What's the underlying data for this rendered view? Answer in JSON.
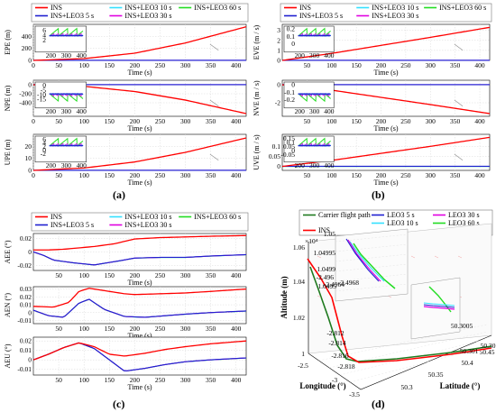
{
  "panel_labels": [
    "(a)",
    "(b)",
    "(c)",
    "(d)"
  ],
  "colors": {
    "INS": "#ff0000",
    "INS+LEO3 5 s": "#1f1fd0",
    "INS+LEO3 10 s": "#33e0ff",
    "INS+LEO3 30 s": "#e000e0",
    "INS+LEO3 60 s": "#22dd22",
    "Carrier flight path": "#1f7a1f",
    "LEO3 5 s": "#1f1fd0",
    "LEO3 10 s": "#33e0ff",
    "LEO3 30 s": "#e000e0",
    "LEO3 60 s": "#22dd22"
  },
  "legend_series": [
    "INS",
    "INS+LEO3 5 s",
    "INS+LEO3 10 s",
    "INS+LEO3 30 s",
    "INS+LEO3 60 s"
  ],
  "chart_data": [
    {
      "id": "a",
      "type": "line",
      "xlabel": "Time (s)",
      "subplots": [
        {
          "ylabel": "EPE (m)",
          "xlim": [
            0,
            420
          ],
          "ylim": [
            0,
            600
          ],
          "yticks": [
            0,
            200,
            400
          ],
          "xticks": [
            0,
            50,
            100,
            150,
            200,
            250,
            300,
            350,
            400
          ],
          "ins": {
            "x": [
              0,
              100,
              200,
              300,
              420
            ],
            "y": [
              0,
              30,
              120,
              290,
              560
            ]
          },
          "others": {
            "y": [
              0,
              0,
              0,
              0,
              0
            ]
          },
          "inset": {
            "xticks": [
              200,
              300,
              400
            ],
            "yticks": [
              2,
              4,
              6
            ],
            "ylim": [
              0,
              7
            ],
            "xlim": [
              180,
              420
            ]
          }
        },
        {
          "ylabel": "NPE (m)",
          "xlim": [
            0,
            420
          ],
          "ylim": [
            -700,
            100
          ],
          "yticks": [
            -400,
            -200,
            0
          ],
          "xticks": [
            0,
            50,
            100,
            150,
            200,
            250,
            300,
            350,
            400
          ],
          "ins": {
            "x": [
              0,
              100,
              200,
              300,
              420
            ],
            "y": [
              0,
              -35,
              -150,
              -340,
              -640
            ]
          },
          "others": {
            "y": [
              0,
              0,
              0,
              0,
              0
            ]
          },
          "inset": {
            "xticks": [
              200,
              300,
              400
            ],
            "yticks": [
              0,
              -5,
              -10,
              -15
            ],
            "ylim": [
              -17,
              2
            ],
            "xlim": [
              180,
              420
            ]
          }
        },
        {
          "ylabel": "UPE (m)",
          "xlim": [
            0,
            420
          ],
          "ylim": [
            0,
            30
          ],
          "yticks": [
            0,
            10,
            20
          ],
          "xticks": [
            0,
            50,
            100,
            150,
            200,
            250,
            300,
            350,
            400
          ],
          "ins": {
            "x": [
              0,
              100,
              200,
              300,
              420
            ],
            "y": [
              0,
              2,
              7,
              15,
              27
            ]
          },
          "others": {
            "y": [
              0,
              0,
              0,
              0,
              0
            ]
          },
          "inset": {
            "xticks": [
              200,
              300,
              400
            ],
            "yticks": [
              -2,
              0,
              2,
              4,
              6
            ],
            "ylim": [
              -3,
              7
            ],
            "xlim": [
              180,
              420
            ]
          }
        }
      ]
    },
    {
      "id": "b",
      "type": "line",
      "xlabel": "Time (s)",
      "subplots": [
        {
          "ylabel": "EVE (m / s)",
          "xlim": [
            0,
            420
          ],
          "ylim": [
            0,
            3.6
          ],
          "yticks": [
            0,
            1,
            2,
            3
          ],
          "xticks": [
            50,
            100,
            150,
            200,
            250,
            300,
            350,
            400
          ],
          "ins": {
            "x": [
              0,
              100,
              200,
              300,
              420
            ],
            "y": [
              0,
              0.7,
              1.5,
              2.3,
              3.3
            ]
          },
          "others": {
            "y": [
              0,
              0,
              0,
              0,
              0
            ]
          },
          "inset": {
            "xticks": [
              200,
              300,
              400
            ],
            "yticks": [
              0,
              0.1,
              0.2
            ],
            "ylim": [
              -0.02,
              0.22
            ],
            "xlim": [
              180,
              420
            ]
          }
        },
        {
          "ylabel": "NVE (m / s)",
          "xlim": [
            0,
            420
          ],
          "ylim": [
            -3.5,
            0.5
          ],
          "yticks": [
            -2,
            0
          ],
          "xticks": [
            50,
            100,
            150,
            200,
            250,
            300,
            350,
            400
          ],
          "ins": {
            "x": [
              0,
              100,
              200,
              300,
              420
            ],
            "y": [
              0,
              -0.6,
              -1.4,
              -2.2,
              -3.2
            ]
          },
          "others": {
            "y": [
              0,
              0,
              0,
              0,
              0
            ]
          },
          "inset": {
            "xticks": [
              200,
              300,
              400
            ],
            "yticks": [
              0,
              -0.1,
              -0.2
            ],
            "ylim": [
              -0.22,
              0.02
            ],
            "xlim": [
              180,
              420
            ]
          }
        },
        {
          "ylabel": "UVE (m / s)",
          "xlim": [
            0,
            420
          ],
          "ylim": [
            -0.02,
            0.16
          ],
          "yticks": [
            0,
            0.05,
            0.1
          ],
          "xticks": [
            50,
            100,
            150,
            200,
            250,
            300,
            350,
            400
          ],
          "ins": {
            "x": [
              0,
              100,
              200,
              300,
              420
            ],
            "y": [
              0,
              0.03,
              0.065,
              0.1,
              0.145
            ]
          },
          "others": {
            "y": [
              0,
              0,
              0,
              0,
              0
            ]
          },
          "inset": {
            "xticks": [
              200,
              300,
              400
            ],
            "yticks": [
              -0.05,
              0,
              0.05,
              0.1,
              0.15
            ],
            "ylim": [
              -0.06,
              0.16
            ],
            "xlim": [
              180,
              420
            ]
          }
        }
      ]
    },
    {
      "id": "c",
      "type": "line",
      "xlabel": "Time (s)",
      "subplots": [
        {
          "ylabel": "AEE (°)",
          "xlim": [
            0,
            420
          ],
          "ylim": [
            -0.027,
            0.027
          ],
          "yticks": [
            -0.02,
            0,
            0.02
          ],
          "xticks": [
            50,
            100,
            150,
            200,
            250,
            300,
            350,
            400
          ],
          "ins": {
            "x": [
              0,
              30,
              60,
              90,
              120,
              160,
              200,
              250,
              300,
              350,
              420
            ],
            "y": [
              0.003,
              0.003,
              0.004,
              0.006,
              0.008,
              0.012,
              0.019,
              0.021,
              0.022,
              0.023,
              0.024
            ]
          },
          "others": {
            "x": [
              0,
              20,
              40,
              80,
              120,
              170,
              200,
              250,
              300,
              350,
              420
            ],
            "y": [
              0,
              -0.005,
              -0.012,
              -0.016,
              -0.019,
              -0.013,
              -0.009,
              -0.008,
              -0.008,
              -0.006,
              -0.004
            ]
          }
        },
        {
          "ylabel": "AEN (°)",
          "xlim": [
            0,
            420
          ],
          "ylim": [
            -0.014,
            0.033
          ],
          "yticks": [
            -0.01,
            0,
            0.01,
            0.02,
            0.03
          ],
          "xticks": [
            50,
            100,
            150,
            200,
            250,
            300,
            350,
            400
          ],
          "ins": {
            "x": [
              0,
              40,
              70,
              90,
              110,
              140,
              180,
              200,
              250,
              300,
              350,
              420
            ],
            "y": [
              0.008,
              0.007,
              0.013,
              0.027,
              0.031,
              0.028,
              0.024,
              0.023,
              0.024,
              0.025,
              0.027,
              0.03
            ]
          },
          "others": {
            "x": [
              0,
              30,
              60,
              90,
              110,
              140,
              180,
              220,
              260,
              300,
              350,
              420
            ],
            "y": [
              0.003,
              -0.004,
              -0.006,
              0.012,
              0.017,
              0.004,
              -0.005,
              -0.006,
              -0.004,
              -0.002,
              0.0,
              0.002
            ]
          }
        },
        {
          "ylabel": "AEU (°)",
          "xlim": [
            0,
            420
          ],
          "ylim": [
            -0.016,
            0.024
          ],
          "yticks": [
            -0.01,
            0,
            0.01,
            0.02
          ],
          "xticks": [
            50,
            100,
            150,
            200,
            250,
            300,
            350,
            400
          ],
          "ins": {
            "x": [
              0,
              30,
              60,
              90,
              120,
              150,
              180,
              220,
              260,
              300,
              350,
              420
            ],
            "y": [
              0.0,
              0.006,
              0.013,
              0.018,
              0.014,
              0.006,
              0.004,
              0.007,
              0.011,
              0.014,
              0.017,
              0.02
            ]
          },
          "others": {
            "x": [
              0,
              30,
              60,
              90,
              120,
              150,
              180,
              220,
              260,
              300,
              350,
              420
            ],
            "y": [
              0.0,
              0.006,
              0.013,
              0.018,
              0.012,
              0.0,
              -0.012,
              -0.009,
              -0.005,
              -0.002,
              0.0,
              0.002
            ]
          }
        }
      ]
    },
    {
      "id": "d",
      "type": "line3d",
      "legend": [
        "Carrier flight path",
        "INS",
        "LEO3 5 s",
        "LEO3 10 s",
        "LEO3 30 s",
        "LEO3 60 s"
      ],
      "exponent_label": "×10⁴",
      "z_label": "Altitude (m)",
      "x_label": "Longitude (°)",
      "y_label": "Latitude (°)",
      "z_ticks": [
        "1",
        "1.02",
        "1.04",
        "1.06"
      ],
      "x_ticks": [
        "-2.5",
        "-3",
        "-3.5"
      ],
      "y_ticks": [
        "50.3",
        "50.35",
        "50.4",
        "50.45"
      ],
      "inset1_ticks": [
        "1.05",
        "1.04995",
        "1.0499",
        "1.0495",
        "-2.496",
        "-2.4964",
        "-2.4968",
        "50.30095",
        "50.3009"
      ],
      "inset2_ticks": [
        "-2.812",
        "-2.814",
        "-2.816",
        "-2.818",
        "50.30",
        "50.301",
        "50.3005"
      ]
    }
  ]
}
